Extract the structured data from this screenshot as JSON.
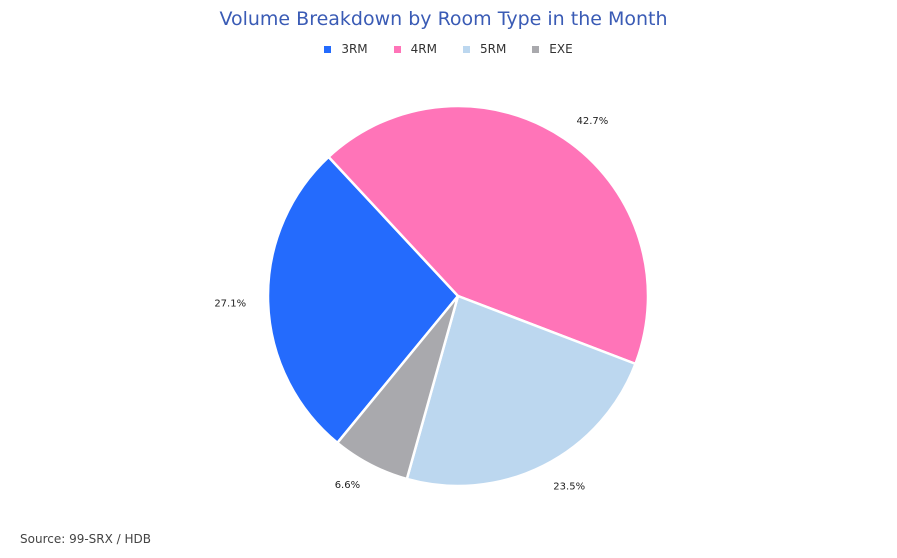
{
  "chart_data": {
    "type": "pie",
    "title": "Volume Breakdown by Room Type in the Month",
    "legend_position": "top",
    "categories": [
      "3RM",
      "4RM",
      "5RM",
      "EXE"
    ],
    "values": [
      27.1,
      42.7,
      23.5,
      6.6
    ],
    "value_labels": [
      "27.1%",
      "42.7%",
      "23.5%",
      "6.6%"
    ],
    "colors": [
      "#246bfd",
      "#ff74b8",
      "#bcd7ef",
      "#a9a9ad"
    ]
  },
  "source": "Source: 99-SRX / HDB"
}
